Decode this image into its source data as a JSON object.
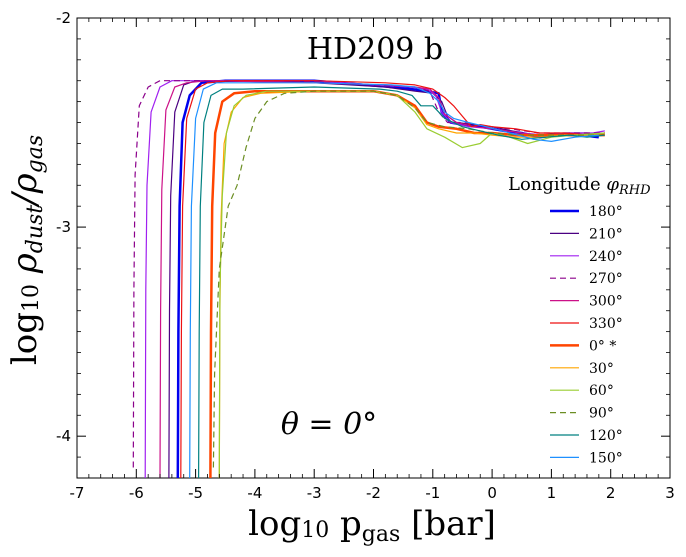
{
  "chart_data": {
    "type": "line",
    "title": "HD209 b",
    "annotation": "θ = 0°",
    "xlabel": "log10 pgas [bar]",
    "ylabel": "log10 ρdust/ρgas",
    "xlim": [
      -7,
      3
    ],
    "ylim": [
      -4.2,
      -2
    ],
    "xticks": [
      -7,
      -6,
      -5,
      -4,
      -3,
      -2,
      -1,
      0,
      1,
      2,
      3
    ],
    "xtick_labels": [
      "-7",
      "-6",
      "-5",
      "-4",
      "-3",
      "-2",
      "-1",
      "0",
      "1",
      "2",
      "3"
    ],
    "yticks": [
      -2,
      -3,
      -4
    ],
    "ytick_labels": [
      "-2",
      "-3",
      "-4"
    ],
    "legend": {
      "title": "Longitude φRHD",
      "location": "center-right"
    },
    "series": [
      {
        "name": "180°",
        "color": "#0000ee",
        "dash": "solid",
        "width": 2.5,
        "x": [
          -5.3,
          -5.29,
          -5.27,
          -5.22,
          -5.1,
          -4.9,
          -4.5,
          -3,
          -1.7,
          -1.35,
          -1.1,
          -0.9,
          -0.85,
          -0.7,
          -0.5,
          -0.2,
          0.2,
          0.5,
          0.8,
          1.1,
          1.5,
          1.8
        ],
        "y": [
          -4.2,
          -3.5,
          -2.9,
          -2.5,
          -2.37,
          -2.31,
          -2.3,
          -2.3,
          -2.33,
          -2.34,
          -2.35,
          -2.36,
          -2.45,
          -2.5,
          -2.51,
          -2.52,
          -2.54,
          -2.55,
          -2.57,
          -2.56,
          -2.56,
          -2.57
        ]
      },
      {
        "name": "210°",
        "color": "#4b0082",
        "dash": "solid",
        "width": 1.2,
        "x": [
          -5.45,
          -5.44,
          -5.42,
          -5.35,
          -5.2,
          -5,
          -4.6,
          -3,
          -1.8,
          -1.3,
          -1,
          -0.85,
          -0.75,
          -0.6,
          -0.3,
          0,
          0.5,
          0.8,
          1.2,
          1.6,
          1.85
        ],
        "y": [
          -4.2,
          -3.4,
          -2.85,
          -2.45,
          -2.32,
          -2.3,
          -2.3,
          -2.31,
          -2.33,
          -2.35,
          -2.36,
          -2.4,
          -2.47,
          -2.5,
          -2.51,
          -2.52,
          -2.55,
          -2.56,
          -2.55,
          -2.55,
          -2.56
        ]
      },
      {
        "name": "240°",
        "color": "#a020f0",
        "dash": "solid",
        "width": 1.2,
        "x": [
          -5.85,
          -5.84,
          -5.82,
          -5.75,
          -5.6,
          -5.4,
          -5,
          -3,
          -2,
          -1.4,
          -1.1,
          -0.95,
          -0.85,
          -0.7,
          -0.4,
          0,
          0.5,
          0.9,
          1.3,
          1.7,
          1.9
        ],
        "y": [
          -4.2,
          -3.3,
          -2.8,
          -2.45,
          -2.33,
          -2.3,
          -2.3,
          -2.3,
          -2.32,
          -2.33,
          -2.34,
          -2.37,
          -2.45,
          -2.5,
          -2.52,
          -2.53,
          -2.55,
          -2.56,
          -2.55,
          -2.55,
          -2.54
        ]
      },
      {
        "name": "270°",
        "color": "#8b008b",
        "dash": "dashed",
        "width": 1.2,
        "x": [
          -6.05,
          -6.04,
          -6.02,
          -5.95,
          -5.8,
          -5.6,
          -5.2,
          -3.5,
          -2,
          -1.3,
          -1.05,
          -0.9,
          -0.75,
          -0.5,
          -0.1,
          0.3,
          0.8,
          1.2,
          1.6,
          1.9
        ],
        "y": [
          -4.15,
          -3.3,
          -2.75,
          -2.42,
          -2.33,
          -2.3,
          -2.3,
          -2.3,
          -2.32,
          -2.33,
          -2.35,
          -2.45,
          -2.5,
          -2.5,
          -2.52,
          -2.53,
          -2.55,
          -2.55,
          -2.55,
          -2.55
        ]
      },
      {
        "name": "300°",
        "color": "#cc1188",
        "dash": "solid",
        "width": 1.2,
        "x": [
          -5.6,
          -5.59,
          -5.57,
          -5.5,
          -5.35,
          -5.15,
          -4.8,
          -3,
          -1.8,
          -1.3,
          -1.05,
          -0.9,
          -0.8,
          -0.6,
          -0.3,
          0,
          0.5,
          0.9,
          1.3,
          1.6,
          1.9
        ],
        "y": [
          -4.2,
          -3.4,
          -2.82,
          -2.44,
          -2.33,
          -2.31,
          -2.3,
          -2.31,
          -2.32,
          -2.33,
          -2.34,
          -2.38,
          -2.46,
          -2.5,
          -2.52,
          -2.53,
          -2.55,
          -2.57,
          -2.55,
          -2.56,
          -2.55
        ]
      },
      {
        "name": "330°",
        "color": "#ee1111",
        "dash": "solid",
        "width": 1.2,
        "x": [
          -5.25,
          -5.24,
          -5.22,
          -5.15,
          -5,
          -4.8,
          -4.4,
          -3,
          -1.8,
          -1.3,
          -1,
          -0.8,
          -0.65,
          -0.5,
          -0.35,
          -0.2,
          0,
          0.4,
          0.8,
          1.2,
          1.6,
          1.9
        ],
        "y": [
          -4.2,
          -3.5,
          -2.9,
          -2.48,
          -2.34,
          -2.31,
          -2.3,
          -2.3,
          -2.31,
          -2.32,
          -2.34,
          -2.38,
          -2.42,
          -2.47,
          -2.52,
          -2.51,
          -2.52,
          -2.53,
          -2.55,
          -2.55,
          -2.56,
          -2.55
        ]
      },
      {
        "name": "0° *",
        "color": "#ff4500",
        "dash": "solid",
        "width": 2.5,
        "x": [
          -4.75,
          -4.74,
          -4.72,
          -4.67,
          -4.55,
          -4.35,
          -4,
          -3,
          -2,
          -1.6,
          -1.3,
          -1.1,
          -0.9,
          -0.6,
          -0.3,
          0,
          0.4,
          0.8,
          1.2,
          1.6,
          1.9
        ],
        "y": [
          -4.2,
          -3.5,
          -2.9,
          -2.55,
          -2.4,
          -2.36,
          -2.35,
          -2.35,
          -2.35,
          -2.37,
          -2.42,
          -2.5,
          -2.52,
          -2.53,
          -2.55,
          -2.55,
          -2.56,
          -2.56,
          -2.56,
          -2.56,
          -2.56
        ]
      },
      {
        "name": "30°",
        "color": "#ffa500",
        "dash": "solid",
        "width": 1.2,
        "x": [
          -4.6,
          -4.59,
          -4.57,
          -4.52,
          -4.4,
          -4.2,
          -3.9,
          -3,
          -2,
          -1.6,
          -1.3,
          -1.1,
          -0.9,
          -0.6,
          -0.3,
          0,
          0.4,
          0.8,
          1.2,
          1.6,
          1.9
        ],
        "y": [
          -4.2,
          -3.4,
          -2.95,
          -2.6,
          -2.45,
          -2.38,
          -2.36,
          -2.35,
          -2.35,
          -2.37,
          -2.43,
          -2.51,
          -2.53,
          -2.55,
          -2.55,
          -2.56,
          -2.57,
          -2.57,
          -2.56,
          -2.56,
          -2.55
        ]
      },
      {
        "name": "60°",
        "color": "#9acd32",
        "dash": "solid",
        "width": 1.2,
        "x": [
          -4.6,
          -4.59,
          -4.55,
          -4.48,
          -4.35,
          -4.15,
          -3.8,
          -3,
          -2,
          -1.6,
          -1.3,
          -1.1,
          -0.8,
          -0.5,
          -0.2,
          0,
          0.3,
          0.6,
          1,
          1.4,
          1.9
        ],
        "y": [
          -4.2,
          -3.3,
          -2.85,
          -2.55,
          -2.42,
          -2.37,
          -2.35,
          -2.35,
          -2.35,
          -2.37,
          -2.45,
          -2.53,
          -2.57,
          -2.62,
          -2.6,
          -2.55,
          -2.57,
          -2.6,
          -2.57,
          -2.56,
          -2.55
        ]
      },
      {
        "name": "90°",
        "color": "#6b8e23",
        "dash": "dashed",
        "width": 1.2,
        "x": [
          -4.7,
          -4.68,
          -4.6,
          -4.45,
          -4.3,
          -4.15,
          -4,
          -3.8,
          -3.5,
          -3,
          -2,
          -1.6,
          -1.3,
          -1.1,
          -0.8,
          -0.4,
          0,
          0.4,
          0.8,
          1.2,
          1.6,
          1.9
        ],
        "y": [
          -4.15,
          -3.7,
          -3.2,
          -2.9,
          -2.8,
          -2.62,
          -2.48,
          -2.4,
          -2.36,
          -2.35,
          -2.35,
          -2.37,
          -2.43,
          -2.5,
          -2.52,
          -2.53,
          -2.55,
          -2.56,
          -2.56,
          -2.56,
          -2.56,
          -2.56
        ]
      },
      {
        "name": "120°",
        "color": "#008080",
        "dash": "solid",
        "width": 1.2,
        "x": [
          -4.95,
          -4.94,
          -4.92,
          -4.86,
          -4.74,
          -4.55,
          -4.2,
          -3,
          -1.9,
          -1.6,
          -1.35,
          -1.2,
          -1.0,
          -0.8,
          -0.5,
          -0.2,
          0.1,
          0.5,
          0.9,
          1.3,
          1.6,
          1.9
        ],
        "y": [
          -4.2,
          -3.5,
          -2.9,
          -2.5,
          -2.37,
          -2.34,
          -2.34,
          -2.33,
          -2.34,
          -2.35,
          -2.37,
          -2.42,
          -2.42,
          -2.48,
          -2.52,
          -2.54,
          -2.56,
          -2.58,
          -2.57,
          -2.56,
          -2.57,
          -2.56
        ]
      },
      {
        "name": "150°",
        "color": "#1e90ff",
        "dash": "solid",
        "width": 1.2,
        "x": [
          -5.1,
          -5.09,
          -5.07,
          -5.0,
          -4.87,
          -4.65,
          -4.3,
          -3,
          -1.7,
          -1.3,
          -1.05,
          -0.9,
          -0.8,
          -0.65,
          -0.4,
          -0.1,
          0.3,
          0.7,
          1.0,
          1.4,
          1.8
        ],
        "y": [
          -4.2,
          -3.5,
          -2.9,
          -2.48,
          -2.34,
          -2.31,
          -2.31,
          -2.31,
          -2.32,
          -2.33,
          -2.36,
          -2.4,
          -2.45,
          -2.48,
          -2.5,
          -2.52,
          -2.55,
          -2.58,
          -2.59,
          -2.57,
          -2.56
        ]
      }
    ]
  }
}
